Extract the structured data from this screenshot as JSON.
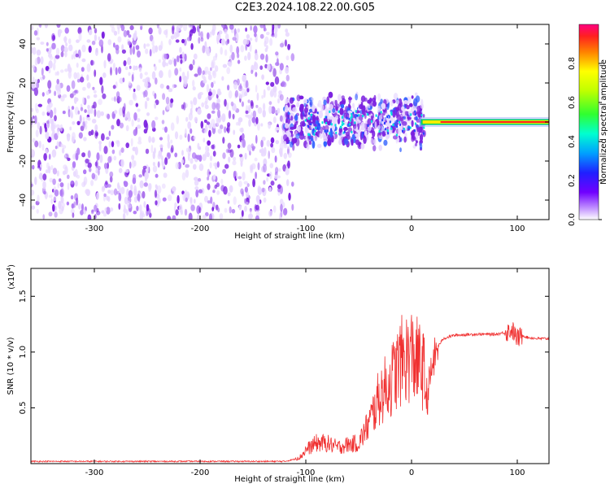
{
  "title": "C2E3.2024.108.22.00.G05",
  "colors": {
    "snr_line": "#f03030",
    "spec_low": "#e8d8ff",
    "spec_mid": "#7a1fe0",
    "spec_core": "#3060ff"
  },
  "chart_data": [
    {
      "type": "heatmap",
      "xlabel": "Height of straight line (km)",
      "ylabel": "Frequency (Hz)",
      "xlim": [
        -360,
        130
      ],
      "ylim": [
        -50,
        50
      ],
      "xticks": [
        -300,
        -200,
        -100,
        0,
        100
      ],
      "yticks": [
        -40,
        -20,
        0,
        20,
        40
      ],
      "noise_region_x": [
        -360,
        -120
      ],
      "transition_region_x": [
        -120,
        12
      ],
      "tone_region_x": [
        12,
        130
      ],
      "tone_frequency": 0,
      "colorbar": {
        "label": "Normalized spectral amplitude",
        "range": [
          0.0,
          1.0
        ],
        "ticks": [
          "0.0",
          "0.2",
          "0.4",
          "0.6",
          "0.8"
        ]
      }
    },
    {
      "type": "line",
      "xlabel": "Height of straight line (km)",
      "ylabel": "SNR (10 * v/v)",
      "scale_label": "(x10",
      "scale_exp": "4",
      "scale_close": ")",
      "xlim": [
        -360,
        130
      ],
      "ylim": [
        0,
        1.75
      ],
      "xticks": [
        -300,
        -200,
        -100,
        0,
        100
      ],
      "yticks": [
        "0.5",
        "1.0",
        "1.5"
      ],
      "series": [
        {
          "x": [
            -360,
            -300,
            -200,
            -150,
            -120,
            -105,
            -100,
            -90,
            -80,
            -70,
            -60,
            -50,
            -40,
            -30,
            -20,
            -10,
            0,
            10,
            15,
            20,
            25,
            30,
            40,
            60,
            80,
            90,
            95,
            100,
            105,
            110,
            120,
            130
          ],
          "y": [
            0.02,
            0.02,
            0.02,
            0.02,
            0.02,
            0.05,
            0.1,
            0.15,
            0.15,
            0.12,
            0.14,
            0.15,
            0.3,
            0.5,
            0.6,
            0.75,
            0.8,
            0.7,
            0.6,
            0.9,
            1.05,
            1.12,
            1.15,
            1.16,
            1.16,
            1.18,
            1.2,
            1.12,
            1.15,
            1.13,
            1.12,
            1.12
          ]
        }
      ]
    }
  ]
}
